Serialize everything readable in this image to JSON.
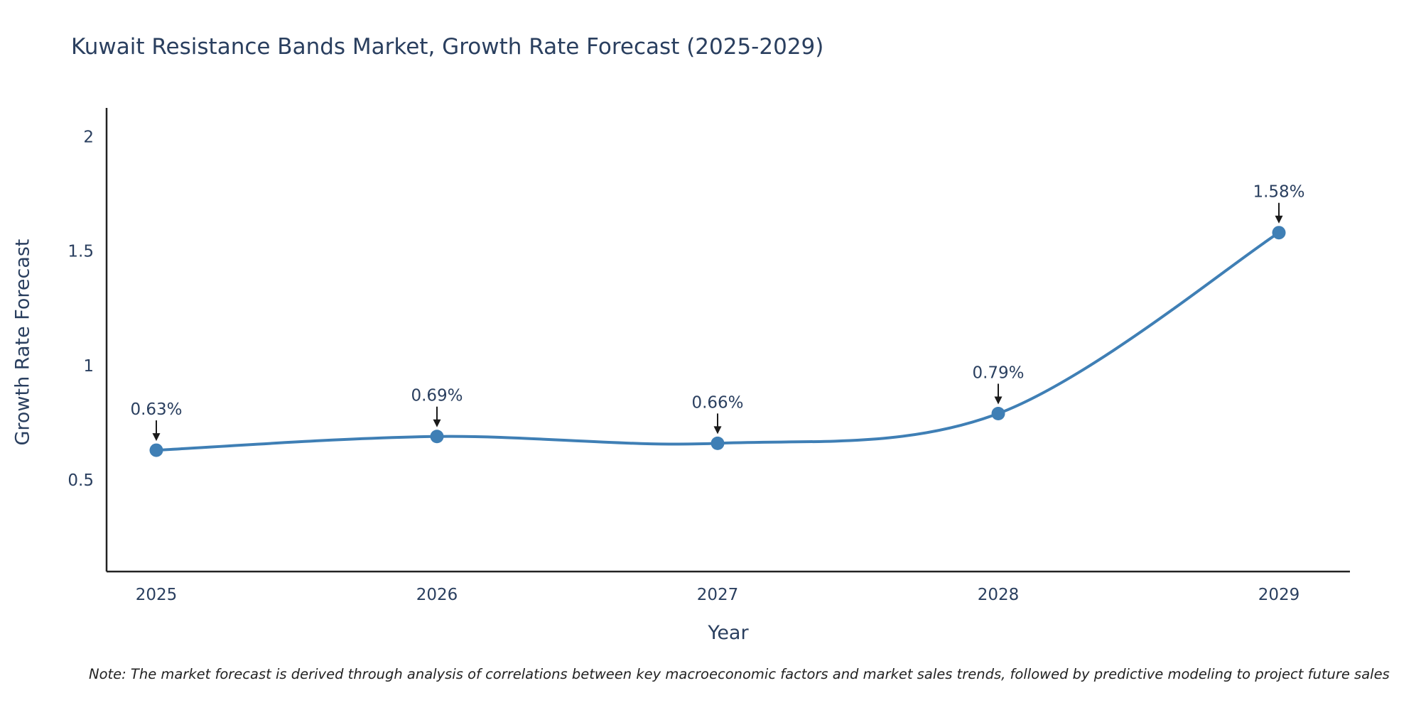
{
  "title": "Kuwait Resistance Bands Market, Growth Rate Forecast (2025-2029)",
  "note": "Note: The market forecast is derived through analysis of correlations between key macroeconomic factors and market sales trends, followed by predictive modeling to project future sales",
  "chart_data": {
    "type": "line",
    "title": "Kuwait Resistance Bands Market, Growth Rate Forecast (2025-2029)",
    "xlabel": "Year",
    "ylabel": "Growth Rate Forecast",
    "categories": [
      "2025",
      "2026",
      "2027",
      "2028",
      "2029"
    ],
    "series": [
      {
        "name": "Growth Rate Forecast",
        "values": [
          0.63,
          0.69,
          0.66,
          0.79,
          1.58
        ]
      }
    ],
    "point_labels": [
      "0.63%",
      "0.69%",
      "0.66%",
      "0.79%",
      "1.58%"
    ],
    "yticks": [
      0.5,
      1,
      1.5,
      2
    ],
    "ytick_labels": [
      "0.5",
      "1",
      "1.5",
      "2"
    ],
    "ylim": [
      0.1,
      2.1
    ],
    "grid": false,
    "legend": "none",
    "line_smoothing": true,
    "colors": {
      "line": "#3f7fb5",
      "marker": "#3f7fb5",
      "text": "#2a3f5f",
      "axis": "#222222",
      "annotation": "#2a3f5f",
      "arrow": "#1a1a1a",
      "background": "#ffffff"
    }
  }
}
